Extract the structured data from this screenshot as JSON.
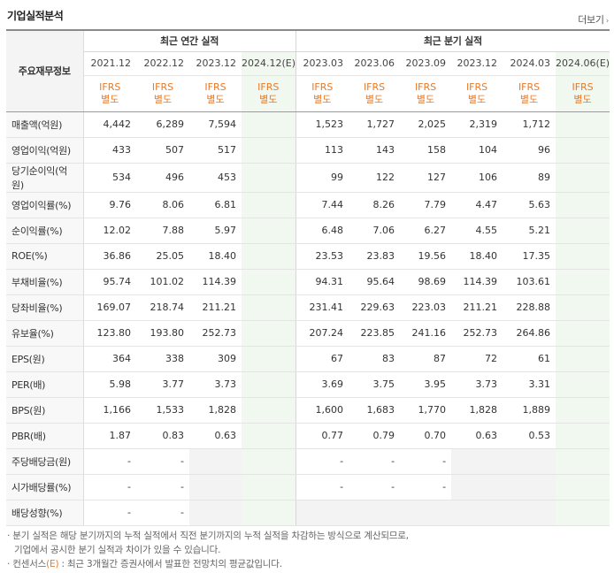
{
  "header": {
    "title": "기업실적분석",
    "more_label": "더보기",
    "more_arrow": "›"
  },
  "table": {
    "row_header": "주요재무정보",
    "group_annual": "최근 연간 실적",
    "group_quarter": "최근 분기 실적",
    "periods": [
      "2021.12",
      "2022.12",
      "2023.12",
      "2024.12(E)",
      "2023.03",
      "2023.06",
      "2023.09",
      "2023.12",
      "2024.03",
      "2024.06(E)"
    ],
    "ifrs_line1": "IFRS",
    "ifrs_line2": "별도",
    "estimate_columns": [
      3,
      9
    ],
    "rows": [
      {
        "label": "매출액(억원)",
        "values": [
          "4,442",
          "6,289",
          "7,594",
          "",
          "1,523",
          "1,727",
          "2,025",
          "2,319",
          "1,712",
          ""
        ]
      },
      {
        "label": "영업이익(억원)",
        "values": [
          "433",
          "507",
          "517",
          "",
          "113",
          "143",
          "158",
          "104",
          "96",
          ""
        ]
      },
      {
        "label": "당기순이익(억원)",
        "values": [
          "534",
          "496",
          "453",
          "",
          "99",
          "122",
          "127",
          "106",
          "89",
          ""
        ]
      },
      {
        "label": "영업이익률(%)",
        "values": [
          "9.76",
          "8.06",
          "6.81",
          "",
          "7.44",
          "8.26",
          "7.79",
          "4.47",
          "5.63",
          ""
        ],
        "group_start": true
      },
      {
        "label": "순이익률(%)",
        "values": [
          "12.02",
          "7.88",
          "5.97",
          "",
          "6.48",
          "7.06",
          "6.27",
          "4.55",
          "5.21",
          ""
        ]
      },
      {
        "label": "ROE(%)",
        "values": [
          "36.86",
          "25.05",
          "18.40",
          "",
          "23.53",
          "23.83",
          "19.56",
          "18.40",
          "17.35",
          ""
        ]
      },
      {
        "label": "부채비율(%)",
        "values": [
          "95.74",
          "101.02",
          "114.39",
          "",
          "94.31",
          "95.64",
          "98.69",
          "114.39",
          "103.61",
          ""
        ],
        "group_start": true
      },
      {
        "label": "당좌비율(%)",
        "values": [
          "169.07",
          "218.74",
          "211.21",
          "",
          "231.41",
          "229.63",
          "223.03",
          "211.21",
          "228.88",
          ""
        ]
      },
      {
        "label": "유보율(%)",
        "values": [
          "123.80",
          "193.80",
          "252.73",
          "",
          "207.24",
          "223.85",
          "241.16",
          "252.73",
          "264.86",
          ""
        ]
      },
      {
        "label": "EPS(원)",
        "values": [
          "364",
          "338",
          "309",
          "",
          "67",
          "83",
          "87",
          "72",
          "61",
          ""
        ],
        "group_start": true
      },
      {
        "label": "PER(배)",
        "values": [
          "5.98",
          "3.77",
          "3.73",
          "",
          "3.69",
          "3.75",
          "3.95",
          "3.73",
          "3.31",
          ""
        ]
      },
      {
        "label": "BPS(원)",
        "values": [
          "1,166",
          "1,533",
          "1,828",
          "",
          "1,600",
          "1,683",
          "1,770",
          "1,828",
          "1,889",
          ""
        ]
      },
      {
        "label": "PBR(배)",
        "values": [
          "1.87",
          "0.83",
          "0.63",
          "",
          "0.77",
          "0.79",
          "0.70",
          "0.63",
          "0.53",
          ""
        ]
      },
      {
        "label": "주당배당금(원)",
        "values": [
          "-",
          "-",
          "",
          "",
          "-",
          "-",
          "-",
          "",
          "",
          ""
        ],
        "group_start": true,
        "empty_columns": [
          2,
          7,
          8
        ]
      },
      {
        "label": "시가배당률(%)",
        "values": [
          "-",
          "-",
          "",
          "",
          "-",
          "-",
          "-",
          "",
          "",
          ""
        ],
        "empty_columns": [
          2,
          7,
          8
        ]
      },
      {
        "label": "배당성향(%)",
        "values": [
          "-",
          "-",
          "",
          "",
          "",
          "",
          "",
          "",
          "",
          ""
        ],
        "empty_columns": [
          2,
          4,
          5,
          6,
          7,
          8
        ]
      }
    ]
  },
  "notes": {
    "line1": "· 분기 실적은 해당 분기까지의 누적 실적에서 직전 분기까지의 누적 실적을 차감하는 방식으로 계산되므로,",
    "line2": "기업에서 공시한 분기 실적과 차이가 있을 수 있습니다.",
    "line3_prefix": "· 컨센서스",
    "line3_mark": "(E)",
    "line3_suffix": " : 최근 3개월간 증권사에서 발표한 전망치의 평균값입니다."
  },
  "colors": {
    "ifrs": "#e87a2a",
    "estimate_bg": "#f0f8ef",
    "empty_bg": "#f3f3f3"
  }
}
